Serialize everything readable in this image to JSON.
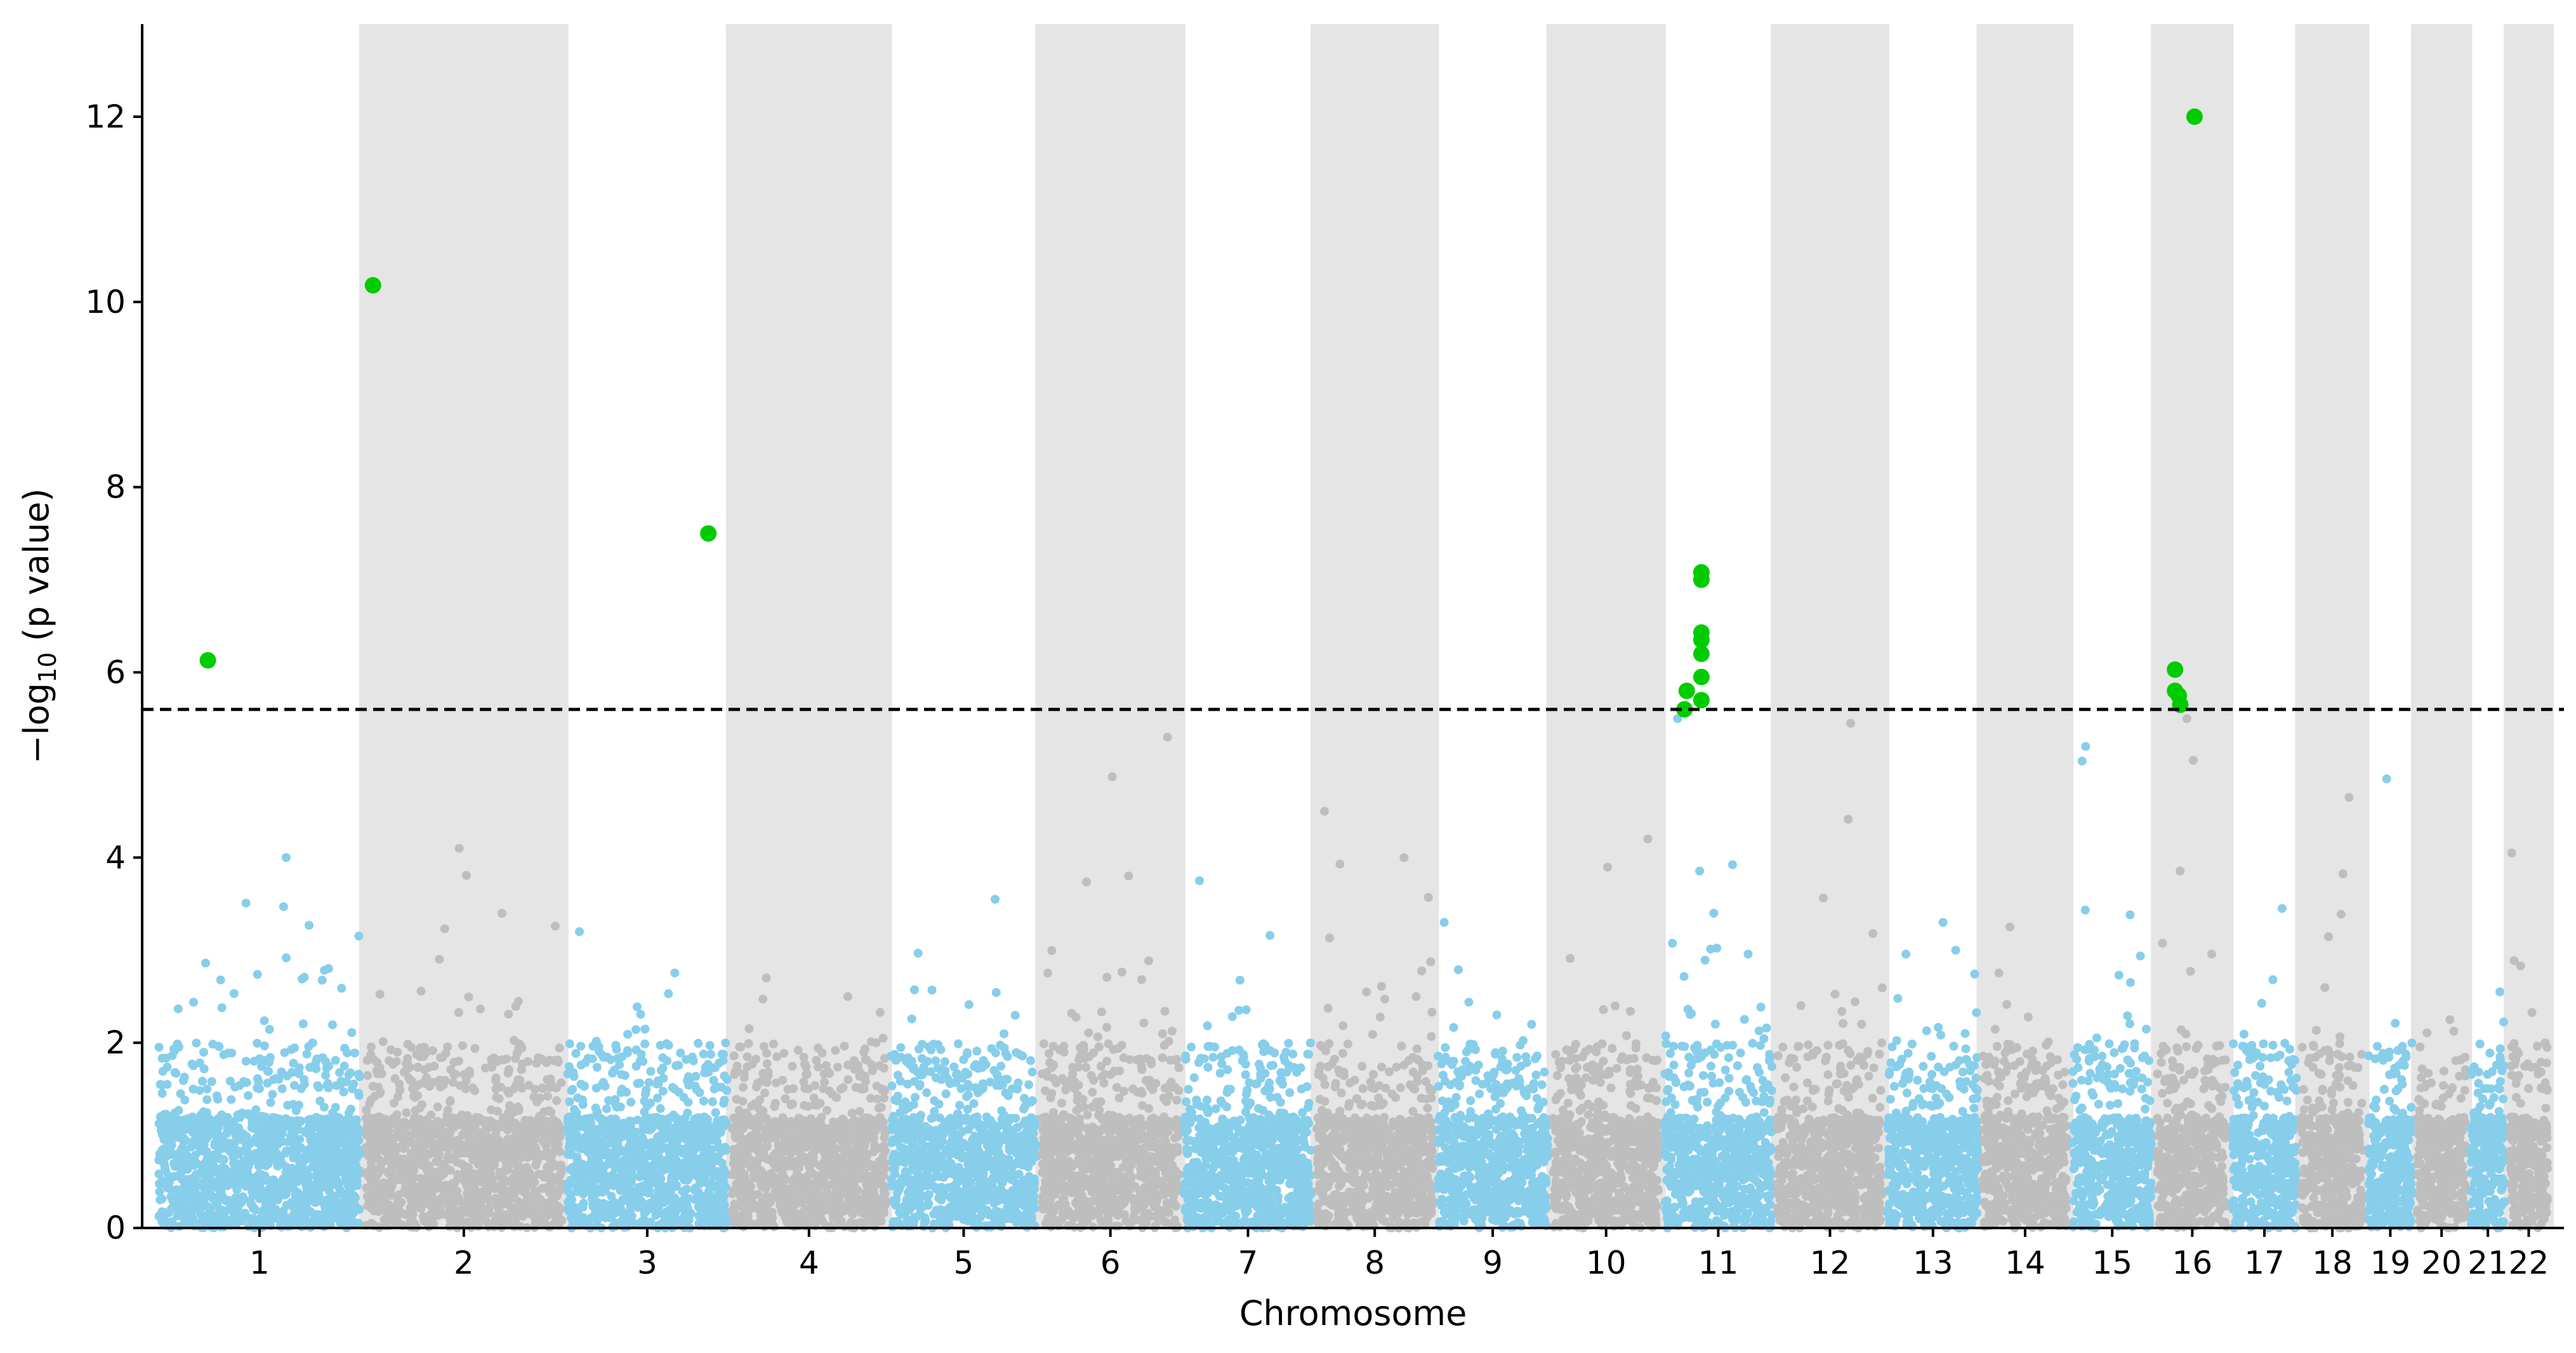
{
  "chart_data": {
    "type": "scatter",
    "subtype": "manhattan",
    "title": "",
    "xlabel": "Chromosome",
    "ylabel": "−log10 (p value)",
    "ylabel_parts": {
      "prefix": "−log",
      "subscript": "10",
      "suffix": " (p value)"
    },
    "ylim": [
      0,
      13
    ],
    "yticks": [
      0,
      2,
      4,
      6,
      8,
      10,
      12
    ],
    "grid": false,
    "legend": "none",
    "significance_threshold": 5.6,
    "colors": {
      "odd_chromosome": "#87ceeb",
      "even_chromosome": "#bebebe",
      "significant": "#00cc00",
      "even_band": "#e5e5e5",
      "threshold_line": "#000000"
    },
    "chromosomes": [
      {
        "label": "1",
        "size": 248,
        "max_background": 4.0
      },
      {
        "label": "2",
        "size": 242,
        "max_background": 4.1
      },
      {
        "label": "3",
        "size": 198,
        "max_background": 3.2
      },
      {
        "label": "4",
        "size": 190,
        "max_background": 2.7
      },
      {
        "label": "5",
        "size": 181,
        "max_background": 3.55
      },
      {
        "label": "6",
        "size": 171,
        "max_background": 5.3
      },
      {
        "label": "7",
        "size": 159,
        "max_background": 3.75
      },
      {
        "label": "8",
        "size": 145,
        "max_background": 4.5
      },
      {
        "label": "9",
        "size": 138,
        "max_background": 3.3
      },
      {
        "label": "10",
        "size": 134,
        "max_background": 4.2
      },
      {
        "label": "11",
        "size": 135,
        "max_background": 5.5
      },
      {
        "label": "12",
        "size": 133,
        "max_background": 5.45
      },
      {
        "label": "13",
        "size": 114,
        "max_background": 3.3
      },
      {
        "label": "14",
        "size": 107,
        "max_background": 3.25
      },
      {
        "label": "15",
        "size": 102,
        "max_background": 5.2
      },
      {
        "label": "16",
        "size": 90,
        "max_background": 5.5
      },
      {
        "label": "17",
        "size": 83,
        "max_background": 3.45
      },
      {
        "label": "18",
        "size": 80,
        "max_background": 4.65
      },
      {
        "label": "19",
        "size": 59,
        "max_background": 4.85
      },
      {
        "label": "20",
        "size": 64,
        "max_background": 2.25
      },
      {
        "label": "21",
        "size": 47,
        "max_background": 2.55
      },
      {
        "label": "22",
        "size": 51,
        "max_background": 4.05
      }
    ],
    "significant_points": [
      {
        "chromosome": "1",
        "position": 0.25,
        "y": 6.13
      },
      {
        "chromosome": "2",
        "position": 0.05,
        "y": 10.18
      },
      {
        "chromosome": "3",
        "position": 0.87,
        "y": 7.5
      },
      {
        "chromosome": "11",
        "position": 0.2,
        "y": 5.6
      },
      {
        "chromosome": "11",
        "position": 0.22,
        "y": 5.8
      },
      {
        "chromosome": "11",
        "position": 0.35,
        "y": 5.7
      },
      {
        "chromosome": "11",
        "position": 0.35,
        "y": 5.95
      },
      {
        "chromosome": "11",
        "position": 0.35,
        "y": 6.2
      },
      {
        "chromosome": "11",
        "position": 0.35,
        "y": 6.35
      },
      {
        "chromosome": "11",
        "position": 0.35,
        "y": 6.43
      },
      {
        "chromosome": "11",
        "position": 0.35,
        "y": 7.0
      },
      {
        "chromosome": "11",
        "position": 0.35,
        "y": 7.08
      },
      {
        "chromosome": "16",
        "position": 0.27,
        "y": 6.03
      },
      {
        "chromosome": "16",
        "position": 0.27,
        "y": 5.8
      },
      {
        "chromosome": "16",
        "position": 0.32,
        "y": 5.75
      },
      {
        "chromosome": "16",
        "position": 0.34,
        "y": 5.65
      },
      {
        "chromosome": "16",
        "position": 0.53,
        "y": 12.0
      }
    ]
  }
}
